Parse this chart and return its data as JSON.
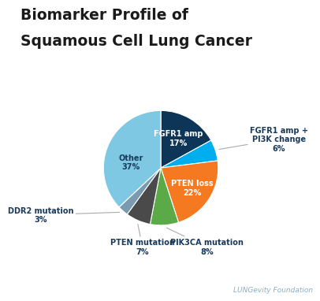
{
  "title_line1": "Biomarker Profile of",
  "title_line2": "Squamous Cell Lung Cancer",
  "title_fontsize": 13.5,
  "title_color": "#1a1a1a",
  "slices": [
    {
      "label": "FGFR1 amp",
      "pct": 17,
      "color": "#0d3557",
      "label_color": "#ffffff",
      "inside": true
    },
    {
      "label": "FGFR1 amp +\nPI3K change",
      "pct": 6,
      "color": "#00aeef",
      "label_color": "#1a3a5c",
      "inside": false
    },
    {
      "label": "PTEN loss",
      "pct": 22,
      "color": "#f47920",
      "label_color": "#ffffff",
      "inside": true
    },
    {
      "label": "PIK3CA mutation",
      "pct": 8,
      "color": "#5aab47",
      "label_color": "#1a3a5c",
      "inside": false
    },
    {
      "label": "PTEN mutation",
      "pct": 7,
      "color": "#4a4a4a",
      "label_color": "#1a3a5c",
      "inside": false
    },
    {
      "label": "DDR2 mutation",
      "pct": 3,
      "color": "#7a9ab0",
      "label_color": "#1a3a5c",
      "inside": false
    },
    {
      "label": "Other",
      "pct": 37,
      "color": "#7ec8e3",
      "label_color": "#1a3a5c",
      "inside": true
    }
  ],
  "footer_text": "LUNGevity Foundation",
  "footer_color": "#8aafc0",
  "background_color": "#ffffff"
}
